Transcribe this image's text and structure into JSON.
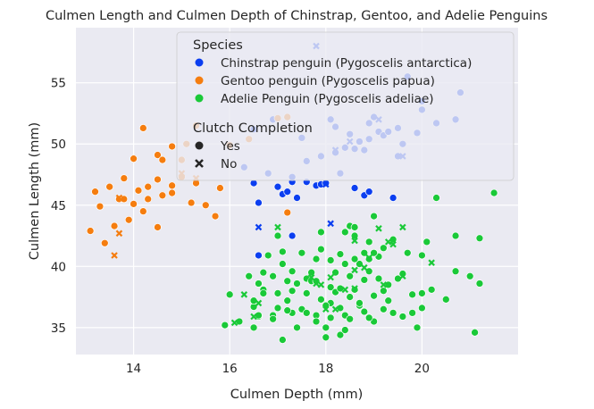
{
  "chart_data": {
    "type": "scatter",
    "title": "Culmen Length and Culmen Depth of Chinstrap, Gentoo, and Adelie Penguins",
    "xlabel": "Culmen Depth (mm)",
    "ylabel": "Culmen Length (mm)",
    "xlim": [
      12.8,
      22.0
    ],
    "ylim": [
      32.8,
      59.5
    ],
    "xticks": [
      14,
      16,
      18,
      20
    ],
    "yticks": [
      35,
      40,
      45,
      50,
      55
    ],
    "grid": true,
    "background": "#eaeaf2",
    "legend": {
      "placement": "top-right",
      "hue_title": "Species",
      "style_title": "Clutch Completion",
      "style_items": [
        {
          "label": "Yes",
          "marker": "circle"
        },
        {
          "label": "No",
          "marker": "x"
        }
      ]
    },
    "series": [
      {
        "name": "Chinstrap penguin (Pygoscelis antarctica)",
        "color": "#0b3ef0",
        "points": [
          [
            16.5,
            46.8
          ],
          [
            16.6,
            45.2
          ],
          [
            16.6,
            40.9
          ],
          [
            17.0,
            46.5
          ],
          [
            17.1,
            45.9
          ],
          [
            17.2,
            46.1
          ],
          [
            17.3,
            46.9
          ],
          [
            17.3,
            42.5
          ],
          [
            17.4,
            45.6
          ],
          [
            17.8,
            46.6
          ],
          [
            17.9,
            46.7
          ],
          [
            18.0,
            46.8
          ],
          [
            18.6,
            46.4
          ],
          [
            18.8,
            45.8
          ],
          [
            18.9,
            46.1
          ],
          [
            19.4,
            45.6
          ],
          [
            16.3,
            48.1
          ],
          [
            16.8,
            47.6
          ],
          [
            16.9,
            52.0
          ],
          [
            17.3,
            47.3
          ],
          [
            17.6,
            48.6
          ],
          [
            17.9,
            49.0
          ],
          [
            18.2,
            51.4
          ],
          [
            18.4,
            49.7
          ],
          [
            18.5,
            50.8
          ],
          [
            18.7,
            50.2
          ],
          [
            18.9,
            51.7
          ],
          [
            19.1,
            51.0
          ],
          [
            19.5,
            51.3
          ],
          [
            19.6,
            50.0
          ],
          [
            20.0,
            52.8
          ],
          [
            20.3,
            51.7
          ],
          [
            20.7,
            52.0
          ],
          [
            20.8,
            54.2
          ],
          [
            19.7,
            55.5
          ],
          [
            20.0,
            53.5
          ],
          [
            16.5,
            51.2
          ],
          [
            17.5,
            50.5
          ],
          [
            17.6,
            46.9
          ],
          [
            18.1,
            52.0
          ],
          [
            18.2,
            49.3
          ],
          [
            18.3,
            47.6
          ],
          [
            18.6,
            49.6
          ],
          [
            18.8,
            49.5
          ],
          [
            19.2,
            50.7
          ],
          [
            19.5,
            49.0
          ],
          [
            19.9,
            50.9
          ],
          [
            18.9,
            50.4
          ],
          [
            19.0,
            52.2
          ],
          [
            19.3,
            51.0
          ]
        ],
        "markers": [
          "o",
          "o",
          "o",
          "o",
          "o",
          "o",
          "o",
          "o",
          "o",
          "o",
          "o",
          "o",
          "o",
          "o",
          "o",
          "o",
          "o",
          "o",
          "o",
          "o",
          "o",
          "o",
          "o",
          "o",
          "o",
          "o",
          "o",
          "o",
          "o",
          "o",
          "o",
          "o",
          "o",
          "o",
          "o",
          "o",
          "o",
          "o",
          "o",
          "o",
          "o",
          "o",
          "o",
          "o",
          "o",
          "o",
          "o",
          "o",
          "o",
          "o"
        ]
      },
      {
        "name": "Gentoo penguin (Pygoscelis papua)",
        "color": "#f57d0f",
        "points": [
          [
            13.1,
            42.9
          ],
          [
            13.2,
            46.1
          ],
          [
            13.3,
            44.9
          ],
          [
            13.4,
            41.9
          ],
          [
            13.5,
            46.5
          ],
          [
            13.6,
            43.3
          ],
          [
            13.7,
            45.5
          ],
          [
            13.7,
            42.7
          ],
          [
            13.8,
            47.2
          ],
          [
            13.9,
            43.8
          ],
          [
            14.0,
            45.1
          ],
          [
            14.1,
            46.2
          ],
          [
            14.2,
            44.5
          ],
          [
            14.3,
            46.5
          ],
          [
            14.5,
            43.2
          ],
          [
            14.5,
            47.1
          ],
          [
            14.6,
            45.8
          ],
          [
            14.8,
            46.0
          ],
          [
            15.0,
            47.3
          ],
          [
            15.2,
            45.2
          ],
          [
            14.2,
            51.3
          ],
          [
            14.5,
            49.1
          ],
          [
            14.8,
            49.8
          ],
          [
            15.0,
            48.7
          ],
          [
            15.3,
            46.8
          ],
          [
            15.5,
            45.0
          ],
          [
            15.7,
            44.1
          ],
          [
            15.8,
            46.4
          ],
          [
            16.0,
            49.9
          ],
          [
            16.4,
            50.4
          ],
          [
            17.0,
            52.1
          ],
          [
            17.2,
            52.2
          ],
          [
            17.2,
            44.4
          ],
          [
            13.6,
            40.9
          ],
          [
            13.8,
            45.5
          ],
          [
            14.0,
            48.8
          ],
          [
            14.3,
            45.5
          ],
          [
            14.6,
            48.7
          ],
          [
            14.8,
            46.6
          ],
          [
            15.1,
            50.0
          ],
          [
            15.3,
            51.5
          ]
        ],
        "markers": [
          "o",
          "o",
          "o",
          "o",
          "o",
          "o",
          "o",
          "x",
          "o",
          "o",
          "o",
          "o",
          "o",
          "o",
          "o",
          "o",
          "o",
          "o",
          "o",
          "o",
          "o",
          "o",
          "o",
          "o",
          "o",
          "o",
          "o",
          "o",
          "o",
          "o",
          "o",
          "o",
          "o",
          "x",
          "o",
          "o",
          "o",
          "o",
          "o",
          "o",
          "o"
        ]
      },
      {
        "name": "Adelie Penguin (Pygoscelis adeliae)",
        "color": "#1ac938",
        "points": [
          [
            15.9,
            35.2
          ],
          [
            16.2,
            35.5
          ],
          [
            16.6,
            35.9
          ],
          [
            16.9,
            36.0
          ],
          [
            17.1,
            34.0
          ],
          [
            17.3,
            36.2
          ],
          [
            17.6,
            39.0
          ],
          [
            17.8,
            36.0
          ],
          [
            18.0,
            34.2
          ],
          [
            18.1,
            38.3
          ],
          [
            18.3,
            36.6
          ],
          [
            18.5,
            39.2
          ],
          [
            18.7,
            36.8
          ],
          [
            18.9,
            40.6
          ],
          [
            19.0,
            37.6
          ],
          [
            19.2,
            36.5
          ],
          [
            19.5,
            39.0
          ],
          [
            19.7,
            41.1
          ],
          [
            20.0,
            37.8
          ],
          [
            20.3,
            45.6
          ],
          [
            21.5,
            46.0
          ],
          [
            21.2,
            42.3
          ],
          [
            21.1,
            34.6
          ],
          [
            20.7,
            39.6
          ],
          [
            20.5,
            37.3
          ],
          [
            20.2,
            38.1
          ],
          [
            20.0,
            40.9
          ],
          [
            19.8,
            36.2
          ],
          [
            19.4,
            42.2
          ],
          [
            19.1,
            40.8
          ],
          [
            18.8,
            41.1
          ],
          [
            18.6,
            42.5
          ],
          [
            18.4,
            40.2
          ],
          [
            18.1,
            37.0
          ],
          [
            17.9,
            41.4
          ],
          [
            17.7,
            38.8
          ],
          [
            17.5,
            41.1
          ],
          [
            17.3,
            39.6
          ],
          [
            17.1,
            40.2
          ],
          [
            16.9,
            39.2
          ],
          [
            16.7,
            38.1
          ],
          [
            16.5,
            36.7
          ],
          [
            17.0,
            37.8
          ],
          [
            17.2,
            37.2
          ],
          [
            17.4,
            38.6
          ],
          [
            17.8,
            38.8
          ],
          [
            18.2,
            39.5
          ],
          [
            18.6,
            38.1
          ],
          [
            18.9,
            39.6
          ],
          [
            19.3,
            38.5
          ],
          [
            17.0,
            42.5
          ],
          [
            16.8,
            40.9
          ],
          [
            19.0,
            44.1
          ],
          [
            18.4,
            42.8
          ],
          [
            20.7,
            42.5
          ],
          [
            18.5,
            43.3
          ],
          [
            17.9,
            37.3
          ],
          [
            16.0,
            37.7
          ],
          [
            16.4,
            39.2
          ],
          [
            16.6,
            38.6
          ],
          [
            16.5,
            37.2
          ],
          [
            16.9,
            35.7
          ],
          [
            17.2,
            36.4
          ],
          [
            17.8,
            35.5
          ],
          [
            18.0,
            35.0
          ],
          [
            18.3,
            34.4
          ],
          [
            18.7,
            37.0
          ],
          [
            19.0,
            35.5
          ],
          [
            19.6,
            35.9
          ],
          [
            19.9,
            35.0
          ],
          [
            18.1,
            40.5
          ],
          [
            18.7,
            40.2
          ],
          [
            19.2,
            41.5
          ],
          [
            20.1,
            42.0
          ],
          [
            21.2,
            38.6
          ],
          [
            17.6,
            37.8
          ],
          [
            18.4,
            36.0
          ],
          [
            18.8,
            38.9
          ],
          [
            19.4,
            36.2
          ],
          [
            17.0,
            36.6
          ],
          [
            18.5,
            35.7
          ],
          [
            17.4,
            35.0
          ],
          [
            18.2,
            37.9
          ],
          [
            18.9,
            42.0
          ],
          [
            19.1,
            39.0
          ],
          [
            17.7,
            39.5
          ],
          [
            18.3,
            41.0
          ],
          [
            18.6,
            43.2
          ],
          [
            19.2,
            38.0
          ],
          [
            17.1,
            41.2
          ],
          [
            17.5,
            36.5
          ],
          [
            16.7,
            37.8
          ],
          [
            18.0,
            36.8
          ],
          [
            18.5,
            37.5
          ],
          [
            18.8,
            36.3
          ],
          [
            19.3,
            37.2
          ],
          [
            18.9,
            35.8
          ],
          [
            17.3,
            38.0
          ],
          [
            17.8,
            40.6
          ],
          [
            16.5,
            35.0
          ],
          [
            19.6,
            39.4
          ],
          [
            20.0,
            36.6
          ],
          [
            18.4,
            34.8
          ],
          [
            17.6,
            36.2
          ],
          [
            18.3,
            38.2
          ],
          [
            19.0,
            41.1
          ],
          [
            16.6,
            36.0
          ],
          [
            17.2,
            38.8
          ],
          [
            18.1,
            35.8
          ],
          [
            19.8,
            37.7
          ],
          [
            21.0,
            39.2
          ],
          [
            17.9,
            42.8
          ],
          [
            16.7,
            39.5
          ],
          [
            18.6,
            40.6
          ],
          [
            16.6,
            37.0
          ],
          [
            16.5,
            35.9
          ],
          [
            17.0,
            43.2
          ],
          [
            18.0,
            36.5
          ],
          [
            17.8,
            38.6
          ],
          [
            18.1,
            39.1
          ],
          [
            18.6,
            39.7
          ],
          [
            18.9,
            40.7
          ],
          [
            19.3,
            42.0
          ],
          [
            20.2,
            40.3
          ],
          [
            19.6,
            43.2
          ],
          [
            18.6,
            42.1
          ]
        ],
        "markers": [
          "o",
          "o",
          "o",
          "o",
          "o",
          "o",
          "o",
          "o",
          "o",
          "o",
          "o",
          "o",
          "o",
          "o",
          "o",
          "o",
          "o",
          "o",
          "o",
          "o",
          "o",
          "o",
          "o",
          "o",
          "o",
          "o",
          "o",
          "o",
          "o",
          "o",
          "o",
          "o",
          "o",
          "o",
          "o",
          "o",
          "o",
          "o",
          "o",
          "o",
          "o",
          "o",
          "o",
          "o",
          "o",
          "o",
          "o",
          "o",
          "o",
          "o",
          "o",
          "o",
          "o",
          "o",
          "o",
          "o",
          "o",
          "o",
          "o",
          "o",
          "o",
          "o",
          "o",
          "o",
          "o",
          "o",
          "o",
          "o",
          "o",
          "o",
          "o",
          "o",
          "o",
          "o",
          "o",
          "o",
          "o",
          "o",
          "o",
          "o",
          "o",
          "o",
          "o",
          "o",
          "o",
          "o",
          "o",
          "o",
          "o",
          "o",
          "o",
          "o",
          "o",
          "o",
          "o",
          "o",
          "o",
          "o",
          "o",
          "o",
          "o",
          "o",
          "o",
          "o",
          "o",
          "o",
          "o",
          "o",
          "o",
          "o",
          "o",
          "o",
          "o",
          "o",
          "x",
          "x",
          "x",
          "x",
          "x",
          "x",
          "x",
          "x",
          "x",
          "x",
          "x",
          "x"
        ]
      }
    ],
    "extra_points_no": [
      {
        "series": 0,
        "point": [
          16.6,
          43.2
        ]
      },
      {
        "series": 0,
        "point": [
          18.0,
          46.7
        ]
      },
      {
        "series": 0,
        "point": [
          18.1,
          43.5
        ]
      },
      {
        "series": 0,
        "point": [
          17.8,
          58.0
        ]
      },
      {
        "series": 0,
        "point": [
          18.2,
          49.5
        ]
      },
      {
        "series": 0,
        "point": [
          19.1,
          52.0
        ]
      },
      {
        "series": 0,
        "point": [
          19.6,
          49.0
        ]
      },
      {
        "series": 0,
        "point": [
          18.5,
          50.2
        ]
      },
      {
        "series": 1,
        "point": [
          13.7,
          45.6
        ]
      },
      {
        "series": 1,
        "point": [
          15.0,
          47.6
        ]
      },
      {
        "series": 1,
        "point": [
          15.3,
          47.2
        ]
      },
      {
        "series": 2,
        "point": [
          16.3,
          37.7
        ]
      },
      {
        "series": 2,
        "point": [
          19.4,
          41.8
        ]
      },
      {
        "series": 2,
        "point": [
          19.6,
          39.2
        ]
      },
      {
        "series": 2,
        "point": [
          18.6,
          38.2
        ]
      },
      {
        "series": 2,
        "point": [
          18.2,
          36.5
        ]
      },
      {
        "series": 2,
        "point": [
          17.9,
          38.5
        ]
      },
      {
        "series": 2,
        "point": [
          17.7,
          39.1
        ]
      },
      {
        "series": 2,
        "point": [
          19.1,
          43.1
        ]
      },
      {
        "series": 2,
        "point": [
          19.2,
          38.5
        ]
      },
      {
        "series": 2,
        "point": [
          16.1,
          35.4
        ]
      },
      {
        "series": 2,
        "point": [
          18.8,
          39.9
        ]
      },
      {
        "series": 2,
        "point": [
          18.4,
          38.1
        ]
      }
    ]
  }
}
